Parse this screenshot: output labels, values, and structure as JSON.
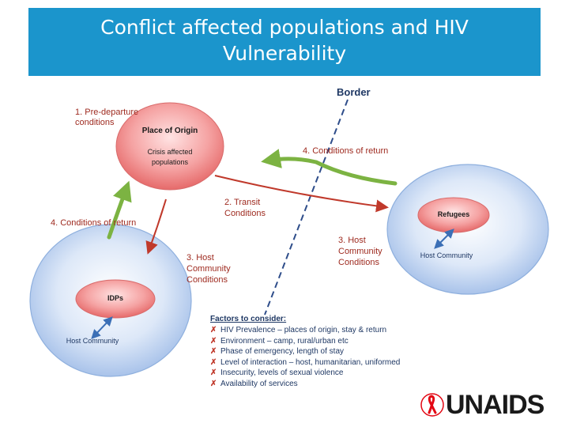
{
  "title": {
    "line1": "Conflict affected populations and HIV",
    "line2": "Vulnerability"
  },
  "border_label": "Border",
  "nodes": {
    "origin": {
      "title": "Place of Origin",
      "sub1": "Crisis affected",
      "sub2": "populations"
    },
    "refugees": {
      "label": "Refugees",
      "host": "Host Community"
    },
    "idps": {
      "label": "IDPs",
      "host": "Host Community"
    }
  },
  "steps": {
    "pre_departure": {
      "line1": "1. Pre-departure",
      "line2": "conditions"
    },
    "transit": {
      "line1": "2. Transit",
      "line2": "Conditions"
    },
    "host_left": {
      "line1": "3. Host",
      "line2": "Community",
      "line3": "Conditions"
    },
    "host_right": {
      "line1": "3. Host",
      "line2": "Community",
      "line3": "Conditions"
    },
    "return_left": "4. Conditions of return",
    "return_right": "4. Conditions of return"
  },
  "factors": {
    "heading": "Factors to consider:",
    "items": [
      "HIV Prevalence – places of origin, stay & return",
      "Environment – camp, rural/urban etc",
      "Phase of emergency, length of stay",
      "Level of interaction – host, humanitarian, uniformed",
      "Insecurity, levels of sexual violence",
      "Availability of services"
    ]
  },
  "logo": {
    "text": "UNAIDS"
  },
  "colors": {
    "title_bg": "#1b95cc",
    "red_arrow": "#c0392b",
    "green_arrow": "#7cb342",
    "blue_arrow": "#3b6fb6",
    "label_navy": "#1f3864"
  }
}
